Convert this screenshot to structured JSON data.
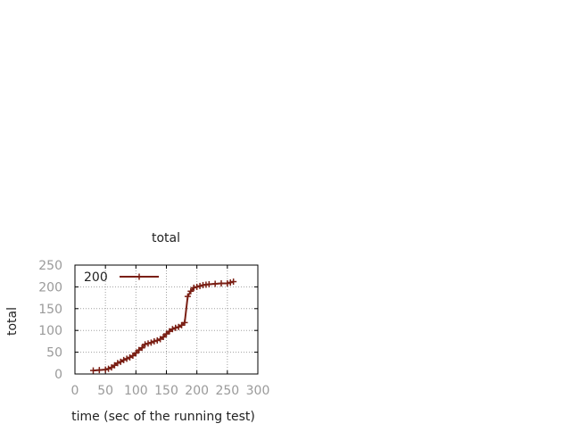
{
  "chart_data": {
    "type": "line",
    "title": "total",
    "xlabel": "time (sec of the running test)",
    "ylabel": "total",
    "xlim": [
      0,
      300
    ],
    "ylim": [
      0,
      250
    ],
    "xticks": [
      0,
      50,
      100,
      150,
      200,
      250,
      300
    ],
    "yticks": [
      0,
      50,
      100,
      150,
      200,
      250
    ],
    "grid": true,
    "legend_position": "top-left",
    "series": [
      {
        "name": "200",
        "color": "#7a1f14",
        "marker": "plus",
        "x": [
          30,
          40,
          50,
          55,
          60,
          65,
          70,
          75,
          80,
          85,
          90,
          95,
          100,
          105,
          110,
          115,
          120,
          125,
          130,
          135,
          140,
          145,
          150,
          155,
          160,
          165,
          170,
          175,
          180,
          185,
          190,
          195,
          200,
          205,
          210,
          215,
          220,
          230,
          240,
          250,
          255,
          260
        ],
        "values": [
          8,
          9,
          10,
          12,
          15,
          20,
          25,
          28,
          32,
          35,
          38,
          42,
          48,
          55,
          60,
          68,
          70,
          72,
          75,
          77,
          80,
          85,
          92,
          98,
          103,
          106,
          108,
          112,
          118,
          178,
          190,
          198,
          200,
          202,
          204,
          205,
          206,
          207,
          208,
          208,
          210,
          212
        ]
      }
    ]
  }
}
